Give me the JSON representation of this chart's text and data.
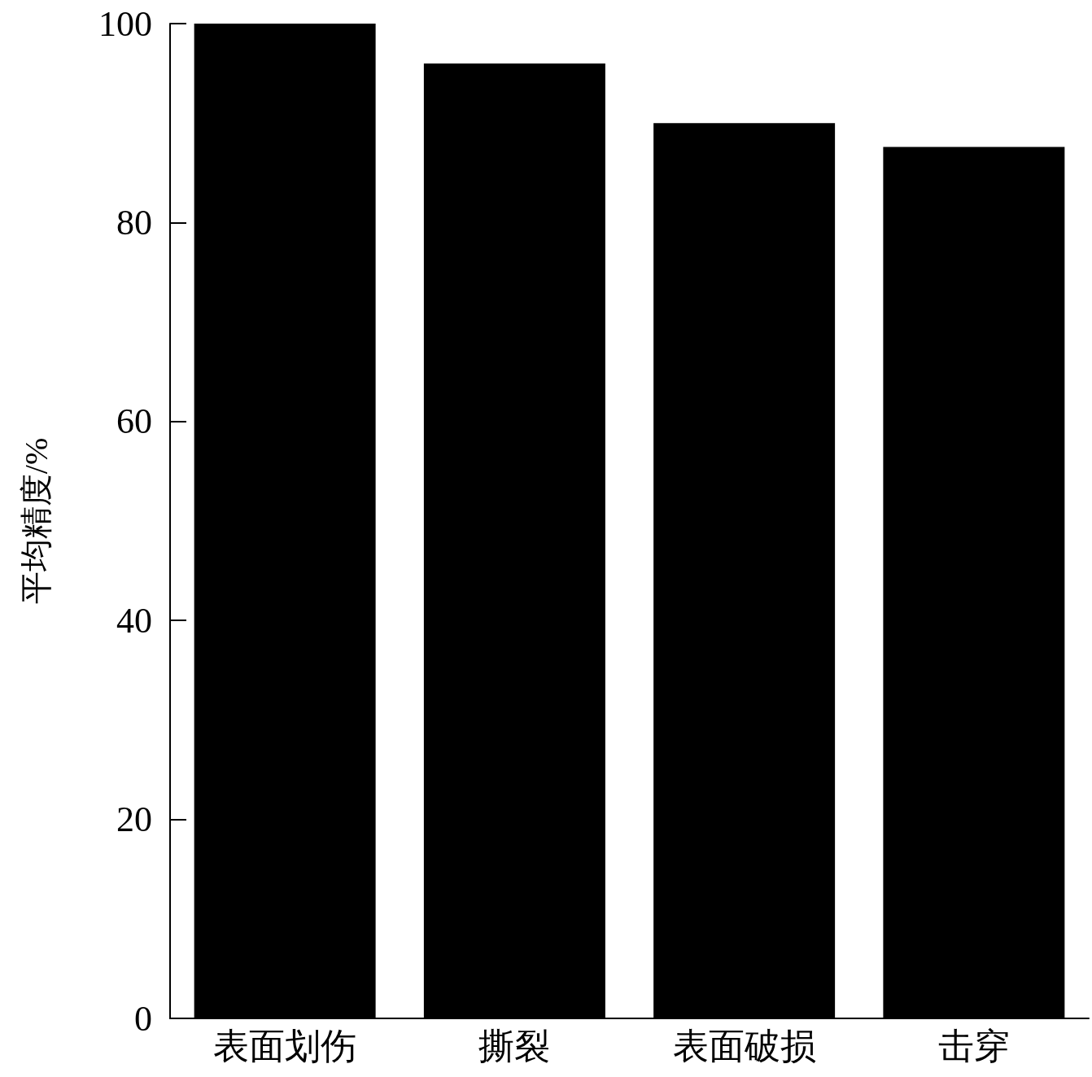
{
  "chart_data": {
    "type": "bar",
    "ylabel": "平均精度/%",
    "categories": [
      "表面划伤",
      "撕裂",
      "表面破损",
      "击穿"
    ],
    "values": [
      100,
      96,
      90,
      87.6
    ],
    "color": "#000000",
    "ylim": [
      0,
      100
    ],
    "yticks": [
      0,
      20,
      40,
      60,
      80,
      100
    ],
    "grid": false
  }
}
